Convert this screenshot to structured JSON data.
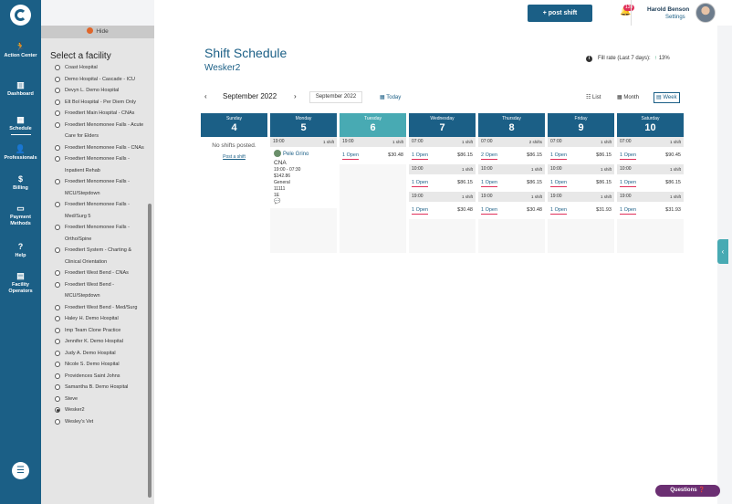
{
  "nav": {
    "items": [
      {
        "label": "Action Center",
        "icon": "runner-icon"
      },
      {
        "label": "Dashboard",
        "icon": "chart-icon"
      },
      {
        "label": "Schedule",
        "icon": "calendar-icon",
        "active": true
      },
      {
        "label": "Professionals",
        "icon": "person-icon"
      },
      {
        "label": "Billing",
        "icon": "dollar-icon"
      },
      {
        "label": "Payment Methods",
        "icon": "card-icon"
      },
      {
        "label": "Help",
        "icon": "question-icon"
      },
      {
        "label": "Facility Operators",
        "icon": "building-icon"
      }
    ]
  },
  "panel": {
    "hide_label": "Hide",
    "title": "Select a facility",
    "facilities": [
      {
        "name": "Coast Hospital"
      },
      {
        "name": "Demo Hospital - Cascade - ICU"
      },
      {
        "name": "Devyn L. Demo Hospital"
      },
      {
        "name": "Elt Bol Hospital - Per Diem Only"
      },
      {
        "name": "Froedtert Main Hospital - CNAs"
      },
      {
        "name": "Froedtert Menomonee Falls - Acute Care for Elders"
      },
      {
        "name": "Froedtert Menomonee Falls - CNAs"
      },
      {
        "name": "Froedtert Menomonee Falls - Inpatient Rehab"
      },
      {
        "name": "Froedtert Menomonee Falls - MCU/Stepdown"
      },
      {
        "name": "Froedtert Menomonee Falls - Med/Surg 5"
      },
      {
        "name": "Froedtert Menomonee Falls - Ortho/Spine"
      },
      {
        "name": "Froedtert System - Charting & Clinical Orientation"
      },
      {
        "name": "Froedtert West Bend - CNAs"
      },
      {
        "name": "Froedtert West Bend - MCU/Stepdown"
      },
      {
        "name": "Froedtert West Bend - Med/Surg"
      },
      {
        "name": "Haley H. Demo Hospital"
      },
      {
        "name": "Imp Team Clone Practice"
      },
      {
        "name": "Jennifer K. Demo Hospital"
      },
      {
        "name": "Judy A. Demo Hospital"
      },
      {
        "name": "Nicole S. Demo Hospital"
      },
      {
        "name": "Providences Saint Johns"
      },
      {
        "name": "Samantha B. Demo Hospital"
      },
      {
        "name": "Steve"
      },
      {
        "name": "Wesker2",
        "checked": true
      },
      {
        "name": "Wesley's Vet"
      }
    ]
  },
  "header": {
    "post_shift": "post shift",
    "notifications": "139",
    "user_name": "Harold Benson",
    "settings": "Settings"
  },
  "main": {
    "title": "Shift Schedule",
    "facility": "Wesker2",
    "fill_rate_label": "Fill rate (Last 7 days):",
    "fill_rate_value": "13%",
    "period": "September 2022",
    "month_picker": "September 2022",
    "today": "Today",
    "views": {
      "list": "List",
      "month": "Month",
      "week": "Week"
    }
  },
  "days": [
    {
      "name": "Sunday",
      "date": "4",
      "empty": "No shifts posted.",
      "post": "Post a shift"
    },
    {
      "name": "Monday",
      "date": "5",
      "slots": [
        {
          "time": "19:00",
          "count": "1 shift"
        }
      ],
      "card": {
        "who": "Pele Grino",
        "role": "CNA",
        "hours": "19:00 - 07:30",
        "pay": "$142.86",
        "unit": "General",
        "code": "11111",
        "room": "1E"
      }
    },
    {
      "name": "Tuesday",
      "date": "6",
      "today": true,
      "slots": [
        {
          "time": "19:00",
          "count": "1 shift",
          "open": "1 Open",
          "amt": "$30.48"
        }
      ]
    },
    {
      "name": "Wednesday",
      "date": "7",
      "slots": [
        {
          "time": "07:00",
          "count": "1 shift",
          "open": "1 Open",
          "amt": "$86.15"
        },
        {
          "time": "10:00",
          "count": "1 shift",
          "open": "1 Open",
          "amt": "$86.15"
        },
        {
          "time": "19:00",
          "count": "1 shift",
          "open": "1 Open",
          "amt": "$30.48"
        }
      ]
    },
    {
      "name": "Thursday",
      "date": "8",
      "slots": [
        {
          "time": "07:00",
          "count": "2 shifts",
          "open": "2 Open",
          "amt": "$86.15"
        },
        {
          "time": "10:00",
          "count": "1 shift",
          "open": "1 Open",
          "amt": "$86.15"
        },
        {
          "time": "19:00",
          "count": "1 shift",
          "open": "1 Open",
          "amt": "$30.48"
        }
      ]
    },
    {
      "name": "Friday",
      "date": "9",
      "slots": [
        {
          "time": "07:00",
          "count": "1 shift",
          "open": "1 Open",
          "amt": "$86.15"
        },
        {
          "time": "10:00",
          "count": "1 shift",
          "open": "1 Open",
          "amt": "$86.15"
        },
        {
          "time": "19:00",
          "count": "1 shift",
          "open": "1 Open",
          "amt": "$31.93"
        }
      ]
    },
    {
      "name": "Saturday",
      "date": "10",
      "slots": [
        {
          "time": "07:00",
          "count": "1 shift",
          "open": "1 Open",
          "amt": "$90.45"
        },
        {
          "time": "10:00",
          "count": "1 shift",
          "open": "1 Open",
          "amt": "$86.15"
        },
        {
          "time": "19:00",
          "count": "1 shift",
          "open": "1 Open",
          "amt": "$31.93"
        }
      ]
    }
  ],
  "questions": "Questions"
}
